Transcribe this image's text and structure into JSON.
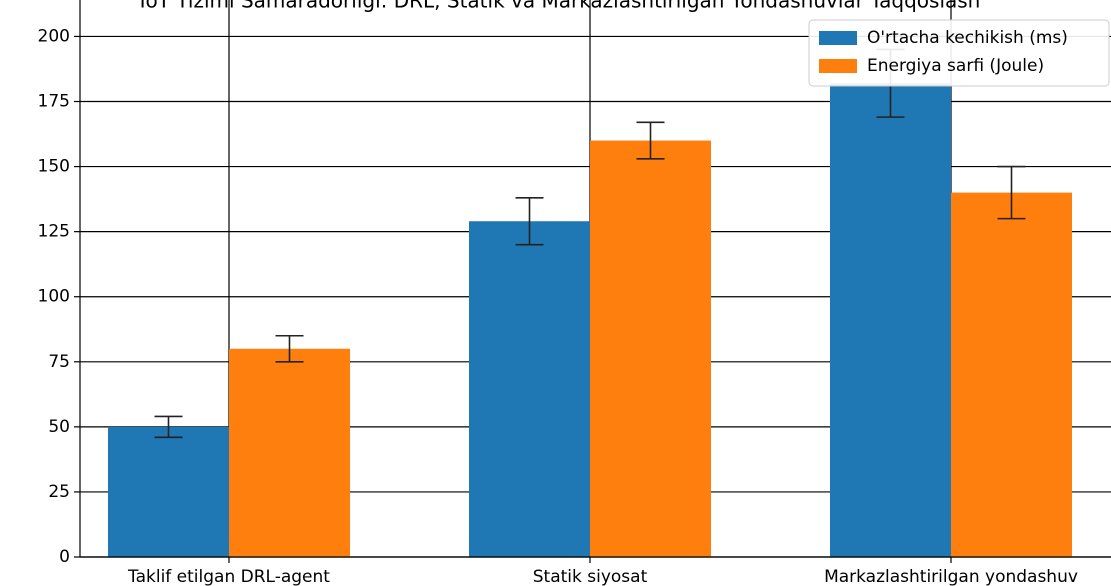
{
  "chart_data": {
    "type": "bar",
    "title": "IoT Tizimi Samaradorligi: DRL, Statik va Markazlashtirilgan Yondashuvlar Taqqoslash",
    "categories": [
      "Taklif etilgan DRL-agent",
      "Statik siyosat",
      "Markazlashtirilgan yondashuv"
    ],
    "series": [
      {
        "name": "O'rtacha kechikish (ms)",
        "color": "#1f77b4",
        "values": [
          50,
          129,
          182
        ],
        "errors": [
          4,
          9,
          13
        ]
      },
      {
        "name": "Energiya sarfi (Joule)",
        "color": "#ff7f0e",
        "values": [
          80,
          160,
          140
        ],
        "errors": [
          5,
          7,
          10
        ]
      }
    ],
    "ylim": [
      0,
      214
    ],
    "yticks": [
      0,
      25,
      50,
      75,
      100,
      125,
      150,
      175,
      200
    ],
    "grid": true,
    "legend": "upper right"
  }
}
